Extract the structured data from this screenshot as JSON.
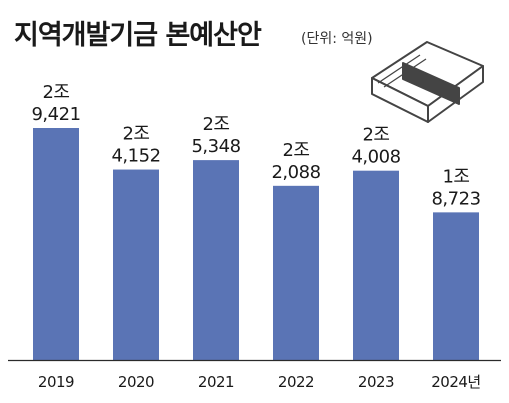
{
  "chart_data": {
    "type": "bar",
    "title": "지역개발기금 본예산안",
    "subtitle": "(단위: 억원)",
    "categories": [
      "2019",
      "2020",
      "2021",
      "2022",
      "2023",
      "2024년"
    ],
    "values": [
      29421,
      24152,
      25348,
      22088,
      24008,
      18723
    ],
    "value_labels": [
      [
        "2조",
        "9,421"
      ],
      [
        "2조",
        "4,152"
      ],
      [
        "2조",
        "5,348"
      ],
      [
        "2조",
        "2,088"
      ],
      [
        "2조",
        "4,008"
      ],
      [
        "1조",
        "8,723"
      ]
    ],
    "xlabel": "",
    "ylabel": "",
    "legend": "none",
    "grid": false,
    "colors": {
      "bar": "#5a74b5",
      "baseline": "#2a2a2a",
      "text": "#1a1a1a"
    }
  },
  "decoration": {
    "icon": "money-bundle-icon"
  }
}
